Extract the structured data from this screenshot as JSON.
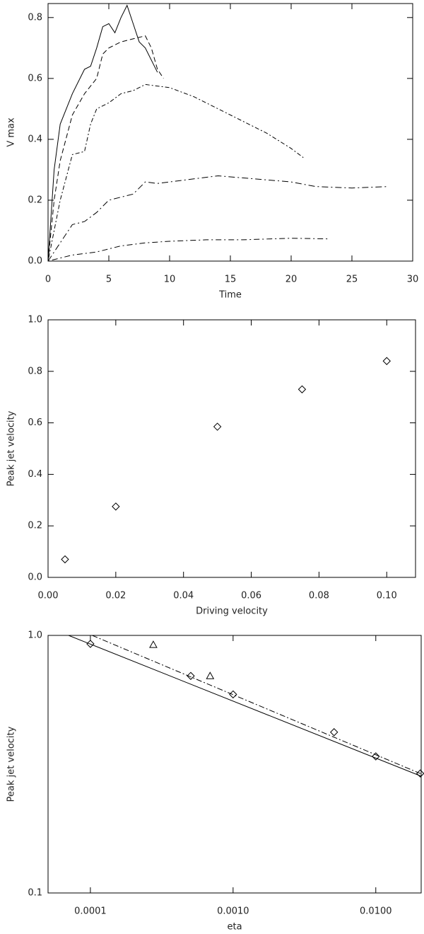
{
  "chart_data": [
    {
      "type": "line",
      "xlabel": "Time",
      "ylabel": "V max",
      "xlim": [
        0,
        30
      ],
      "ylim": [
        0,
        0.846
      ],
      "xticks": [
        0,
        5,
        10,
        15,
        20,
        25,
        30
      ],
      "yticks": [
        {
          "value": 0,
          "label": "0.0"
        },
        0.2,
        0.4,
        0.6,
        0.8
      ],
      "series": [
        {
          "color": "#000000",
          "dash": "none",
          "x": [
            0,
            0.5,
            1,
            2,
            3,
            3.5,
            4,
            4.5,
            5,
            5.5,
            6,
            6.5,
            7,
            7.5,
            8,
            9
          ],
          "values": [
            0,
            0.3,
            0.45,
            0.55,
            0.63,
            0.64,
            0.7,
            0.77,
            0.78,
            0.75,
            0.8,
            0.84,
            0.78,
            0.72,
            0.7,
            0.62
          ]
        },
        {
          "color": "#000000",
          "dash": "7,4",
          "x": [
            0,
            0.5,
            1,
            2,
            3,
            4,
            4.5,
            5,
            6,
            7,
            8,
            8.5,
            9,
            9.5
          ],
          "values": [
            0,
            0.2,
            0.33,
            0.48,
            0.55,
            0.6,
            0.68,
            0.7,
            0.72,
            0.73,
            0.74,
            0.7,
            0.63,
            0.6
          ]
        },
        {
          "color": "#000000",
          "dash": "2,3,6,3",
          "x": [
            0,
            1,
            2,
            3,
            3.5,
            4,
            5,
            6,
            7,
            8,
            10,
            12,
            14,
            16,
            18,
            20,
            21
          ],
          "values": [
            0,
            0.2,
            0.35,
            0.36,
            0.45,
            0.5,
            0.52,
            0.55,
            0.56,
            0.58,
            0.57,
            0.54,
            0.5,
            0.46,
            0.42,
            0.37,
            0.34
          ]
        },
        {
          "color": "#000000",
          "dash": "9,4,2,4",
          "x": [
            0,
            1,
            2,
            3,
            4,
            5,
            6,
            7,
            8,
            9,
            10,
            12,
            14,
            17,
            20,
            22,
            25,
            28
          ],
          "values": [
            0,
            0.06,
            0.12,
            0.13,
            0.16,
            0.2,
            0.21,
            0.22,
            0.26,
            0.255,
            0.26,
            0.27,
            0.28,
            0.27,
            0.26,
            0.245,
            0.24,
            0.245
          ]
        },
        {
          "color": "#000000",
          "dash": "2,4,8,4",
          "x": [
            0,
            2,
            4,
            6,
            8,
            10,
            13,
            16,
            20,
            23
          ],
          "values": [
            0,
            0.02,
            0.03,
            0.05,
            0.06,
            0.065,
            0.07,
            0.07,
            0.075,
            0.073
          ]
        }
      ]
    },
    {
      "type": "scatter",
      "xlabel": "Driving velocity",
      "ylabel": "Peak jet velocity",
      "xlim": [
        0,
        0.1085
      ],
      "ylim": [
        0,
        1
      ],
      "xticks": [
        {
          "value": 0,
          "label": "0.00"
        },
        {
          "value": 0.02,
          "label": "0.02"
        },
        {
          "value": 0.04,
          "label": "0.04"
        },
        {
          "value": 0.06,
          "label": "0.06"
        },
        {
          "value": 0.08,
          "label": "0.08"
        },
        {
          "value": 0.1,
          "label": "0.10"
        }
      ],
      "yticks": [
        {
          "value": 0,
          "label": "0.0"
        },
        0.2,
        0.4,
        0.6,
        0.8,
        {
          "value": 1,
          "label": "1.0"
        }
      ],
      "series": [
        {
          "color": "#000000",
          "marker": "diamond",
          "x": [
            0.005,
            0.02,
            0.05,
            0.075,
            0.1
          ],
          "values": [
            0.07,
            0.275,
            0.585,
            0.73,
            0.84
          ]
        }
      ]
    },
    {
      "type": "scatter",
      "xlabel": "eta",
      "ylabel": "Peak jet velocity",
      "xscale": "log",
      "yscale": "log",
      "xlim": [
        5.05e-05,
        0.0208
      ],
      "ylim": [
        0.1,
        1
      ],
      "xticks": [
        0.0001,
        {
          "value": 0.001,
          "label": "0.0010"
        },
        {
          "value": 0.01,
          "label": "0.0100"
        }
      ],
      "yticks": [
        0.1,
        {
          "value": 1,
          "label": "1.0"
        }
      ],
      "series": [
        {
          "color": "#000000",
          "marker": "diamond",
          "x": [
            0.0001,
            0.000505,
            0.001,
            0.0051,
            0.01,
            0.0205
          ],
          "values": [
            0.927,
            0.696,
            0.59,
            0.421,
            0.339,
            0.291
          ]
        },
        {
          "color": "#000000",
          "marker": "triangle",
          "x": [
            0.000276,
            0.00069
          ],
          "values": [
            0.92,
            0.696
          ]
        },
        {
          "color": "#000000",
          "marker": "none",
          "dash": "none",
          "x": [
            7.03e-05,
            0.0208
          ],
          "values": [
            1,
            0.284
          ]
        },
        {
          "color": "#000000",
          "marker": "none",
          "dash": "8,3,2,3",
          "x": [
            0.000103,
            0.0208
          ],
          "values": [
            1,
            0.29
          ]
        }
      ]
    }
  ]
}
